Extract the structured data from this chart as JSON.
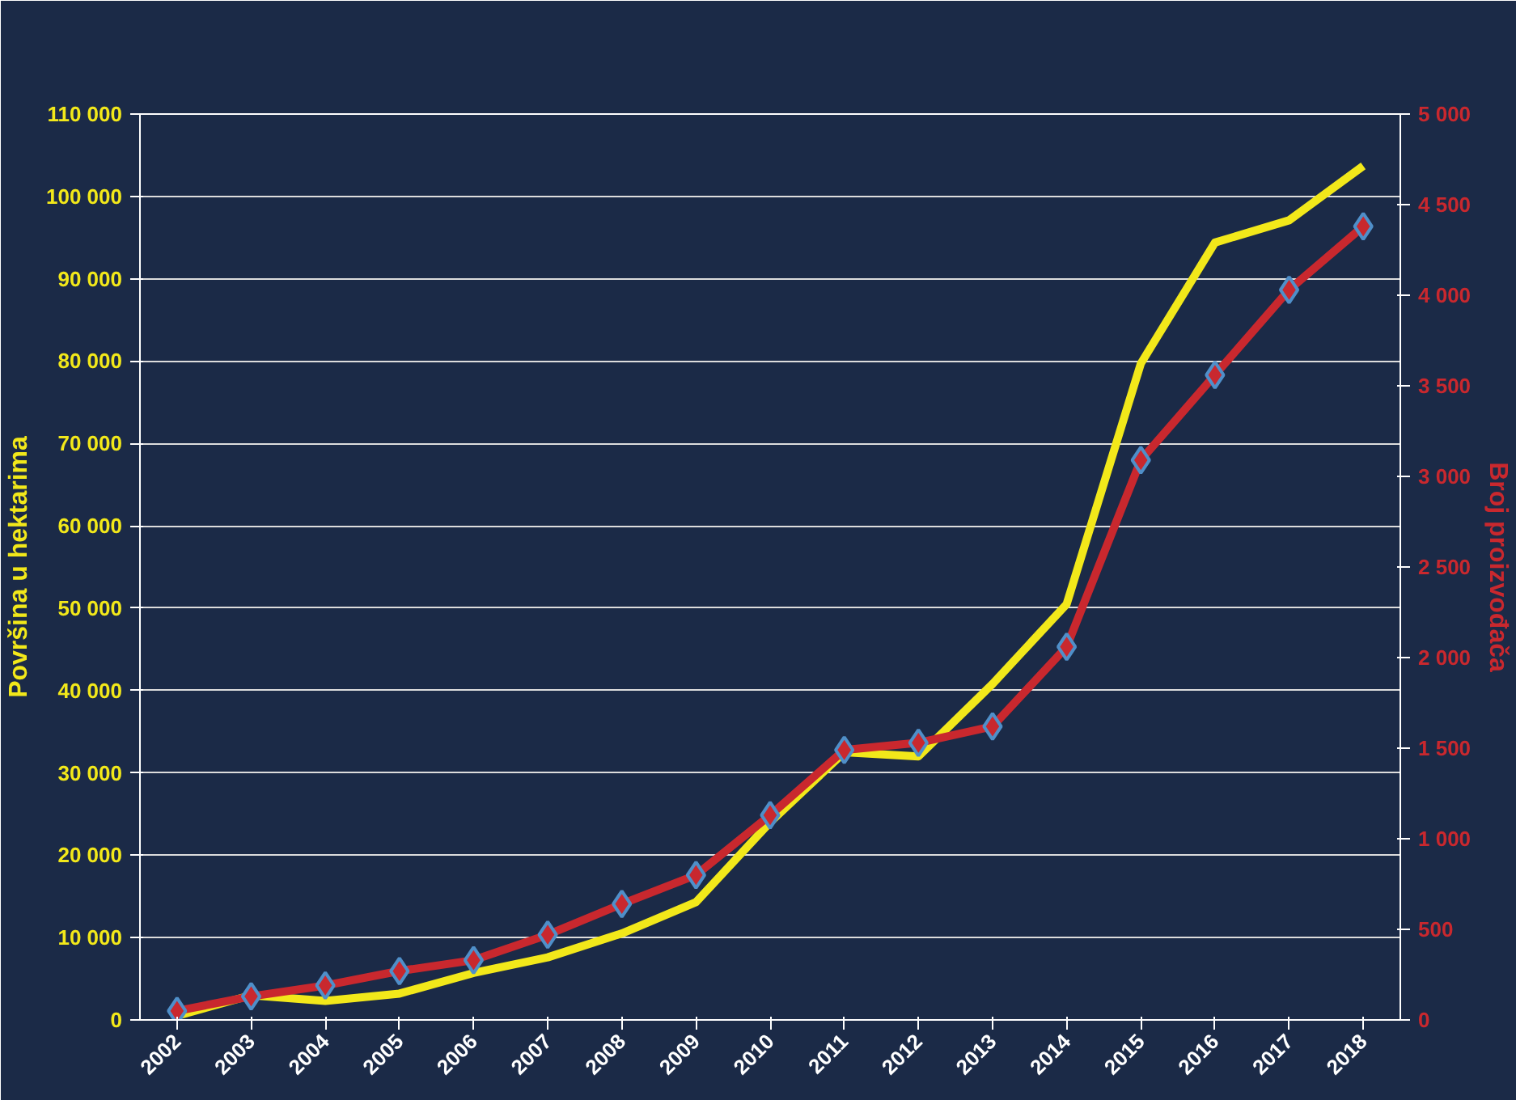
{
  "chart_data": {
    "type": "line",
    "categories": [
      "2002",
      "2003",
      "2004",
      "2005",
      "2006",
      "2007",
      "2008",
      "2009",
      "2010",
      "2011",
      "2012",
      "2013",
      "2014",
      "2015",
      "2016",
      "2017",
      "2018"
    ],
    "ylabel": "Površina u hektarima",
    "y2label": "Broj proizvođača",
    "series": [
      {
        "color": "#f2e81a",
        "marker": "none",
        "values": [
          500,
          3000,
          2300,
          3200,
          5700,
          7600,
          10500,
          14300,
          24000,
          32500,
          32000,
          40800,
          50500,
          79700,
          94400,
          97100,
          103700
        ]
      },
      {
        "color": "#c9282e",
        "marker": "diamond",
        "axis": "y2",
        "values": [
          50,
          130,
          190,
          270,
          330,
          470,
          640,
          800,
          1130,
          1490,
          1530,
          1620,
          2060,
          3090,
          3560,
          4030,
          4380
        ]
      }
    ],
    "ylim": [
      0,
      110000
    ],
    "yticks": [
      {
        "value": 0,
        "label": "0"
      },
      {
        "value": 10000,
        "label": "10 000"
      },
      {
        "value": 20000,
        "label": "20 000"
      },
      {
        "value": 30000,
        "label": "30 000"
      },
      {
        "value": 40000,
        "label": "40 000"
      },
      {
        "value": 50000,
        "label": "50 000"
      },
      {
        "value": 60000,
        "label": "60 000"
      },
      {
        "value": 70000,
        "label": "70 000"
      },
      {
        "value": 80000,
        "label": "80 000"
      },
      {
        "value": 90000,
        "label": "90 000"
      },
      {
        "value": 100000,
        "label": "100 000"
      },
      {
        "value": 110000,
        "label": "110 000"
      }
    ],
    "y2lim": [
      0,
      5000
    ],
    "y2ticks": [
      {
        "value": 0,
        "label": "0"
      },
      {
        "value": 500,
        "label": "500"
      },
      {
        "value": 1000,
        "label": "1 000"
      },
      {
        "value": 1500,
        "label": "1 500"
      },
      {
        "value": 2000,
        "label": "2 000"
      },
      {
        "value": 2500,
        "label": "2 500"
      },
      {
        "value": 3000,
        "label": "3 000"
      },
      {
        "value": 3500,
        "label": "3 500"
      },
      {
        "value": 4000,
        "label": "4 000"
      },
      {
        "value": 4500,
        "label": "4 500"
      },
      {
        "value": 5000,
        "label": "5 000"
      }
    ],
    "grid": "y"
  }
}
